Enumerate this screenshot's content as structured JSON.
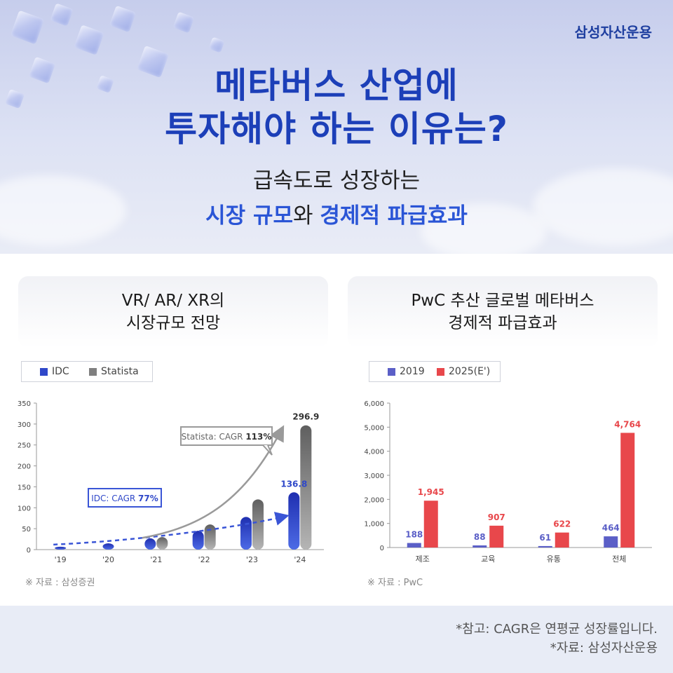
{
  "brand": "삼성자산운용",
  "header": {
    "title_line1": "메타버스 산업에",
    "title_line2": "투자해야 하는 이유는?",
    "sub_line1": "급속도로 성장하는",
    "sub_hl1": "시장 규모",
    "sub_mid": "와 ",
    "sub_hl2": "경제적 파급효과"
  },
  "left_card": {
    "title_line1": "VR/ AR/ XR의",
    "title_line2": "시장규모 전망",
    "source": "※ 자료 : 삼성증권"
  },
  "right_card": {
    "title_line1": "PwC 추산 글로벌 메타버스",
    "title_line2": "경제적 파급효과",
    "source": "※ 자료 : PwC"
  },
  "footer": {
    "note1": "*참고: CAGR은 연평균 성장률입니다.",
    "note2": "*자료: 삼성자산운용"
  },
  "colors": {
    "blue": "#2f48c9",
    "gray": "#7f7f7f",
    "purple": "#5b5fc7",
    "red": "#e8474b",
    "title_blue": "#1c3fb8"
  },
  "chart_data": [
    {
      "type": "bar",
      "categories": [
        "'19",
        "'20",
        "'21",
        "'22",
        "'23",
        "'24"
      ],
      "series": [
        {
          "name": "IDC",
          "values": [
            7,
            15,
            27,
            45,
            78,
            136.8
          ]
        },
        {
          "name": "Statista",
          "values": [
            0,
            0,
            30,
            60,
            120,
            296.9
          ]
        }
      ],
      "ylim": [
        0,
        350
      ],
      "yticks": [
        "0",
        "50",
        "100",
        "150",
        "200",
        "250",
        "300",
        "350"
      ],
      "data_labels": [
        {
          "series": "IDC",
          "category": "'24",
          "label": "136.8"
        },
        {
          "series": "Statista",
          "category": "'24",
          "label": "296.9"
        }
      ],
      "annotations": [
        {
          "prefix": "IDC: CAGR ",
          "value": "77%"
        },
        {
          "prefix": "Statista: CAGR ",
          "value": "113%"
        }
      ],
      "legend": "top-left",
      "grid": false
    },
    {
      "type": "bar",
      "categories": [
        "제조",
        "교육",
        "유통",
        "전체"
      ],
      "series": [
        {
          "name": "2019",
          "values": [
            188,
            88,
            61,
            464
          ]
        },
        {
          "name": "2025(E')",
          "values": [
            1945,
            907,
            622,
            4764
          ]
        }
      ],
      "value_labels": [
        [
          "188",
          "88",
          "61",
          "464"
        ],
        [
          "1,945",
          "907",
          "622",
          "4,764"
        ]
      ],
      "ylim": [
        0,
        6000
      ],
      "yticks": [
        "0",
        "1,000",
        "2,000",
        "3,000",
        "4,000",
        "5,000",
        "6,000"
      ],
      "legend": "top-left",
      "grid": false
    }
  ]
}
